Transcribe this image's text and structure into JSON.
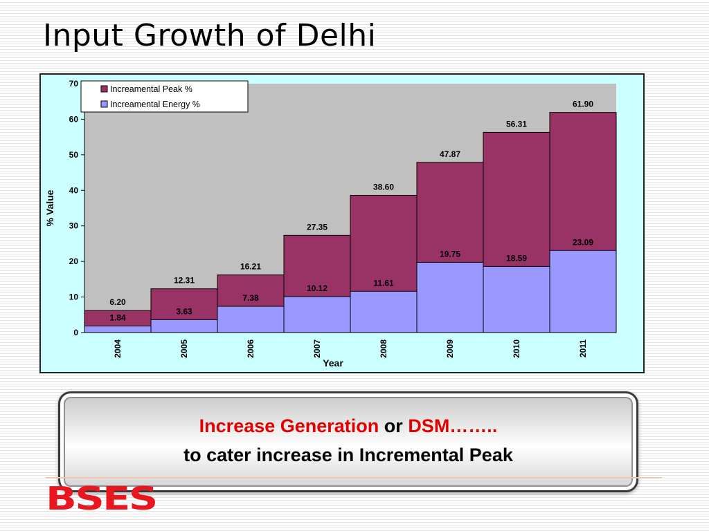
{
  "slide": {
    "title": "Input Growth of Delhi",
    "callout": {
      "generation": "Increase Generation",
      "or": " or ",
      "dsm": "DSM……..",
      "line2": "to cater increase in Incremental Peak"
    },
    "logo": "BSES"
  },
  "colors": {
    "peak": "#993366",
    "energy": "#9999ff",
    "plot_bg": "#c0c0c0",
    "chart_bg": "#ccffff",
    "highlight": "#e00000"
  },
  "chart_data": {
    "type": "bar",
    "xlabel": "Year",
    "ylabel": "% Value",
    "ylim": [
      0,
      70
    ],
    "yticks": [
      0,
      10,
      20,
      30,
      40,
      50,
      60,
      70
    ],
    "categories": [
      "2004",
      "2005",
      "2006",
      "2007",
      "2008",
      "2009",
      "2010",
      "2011"
    ],
    "series": [
      {
        "name": "Increamental Peak %",
        "values": [
          6.2,
          12.31,
          16.21,
          27.35,
          38.6,
          47.87,
          56.31,
          61.9
        ],
        "labels": [
          "6.20",
          "12.31",
          "16.21",
          "27.35",
          "38.60",
          "47.87",
          "56.31",
          "61.90"
        ]
      },
      {
        "name": "Increamental Energy %",
        "values": [
          1.84,
          3.63,
          7.38,
          10.12,
          11.61,
          19.75,
          18.59,
          23.09
        ],
        "labels": [
          "1.84",
          "3.63",
          "7.38",
          "10.12",
          "11.61",
          "19.75",
          "18.59",
          "23.09"
        ]
      }
    ],
    "legend": "top-left",
    "grid": false
  }
}
